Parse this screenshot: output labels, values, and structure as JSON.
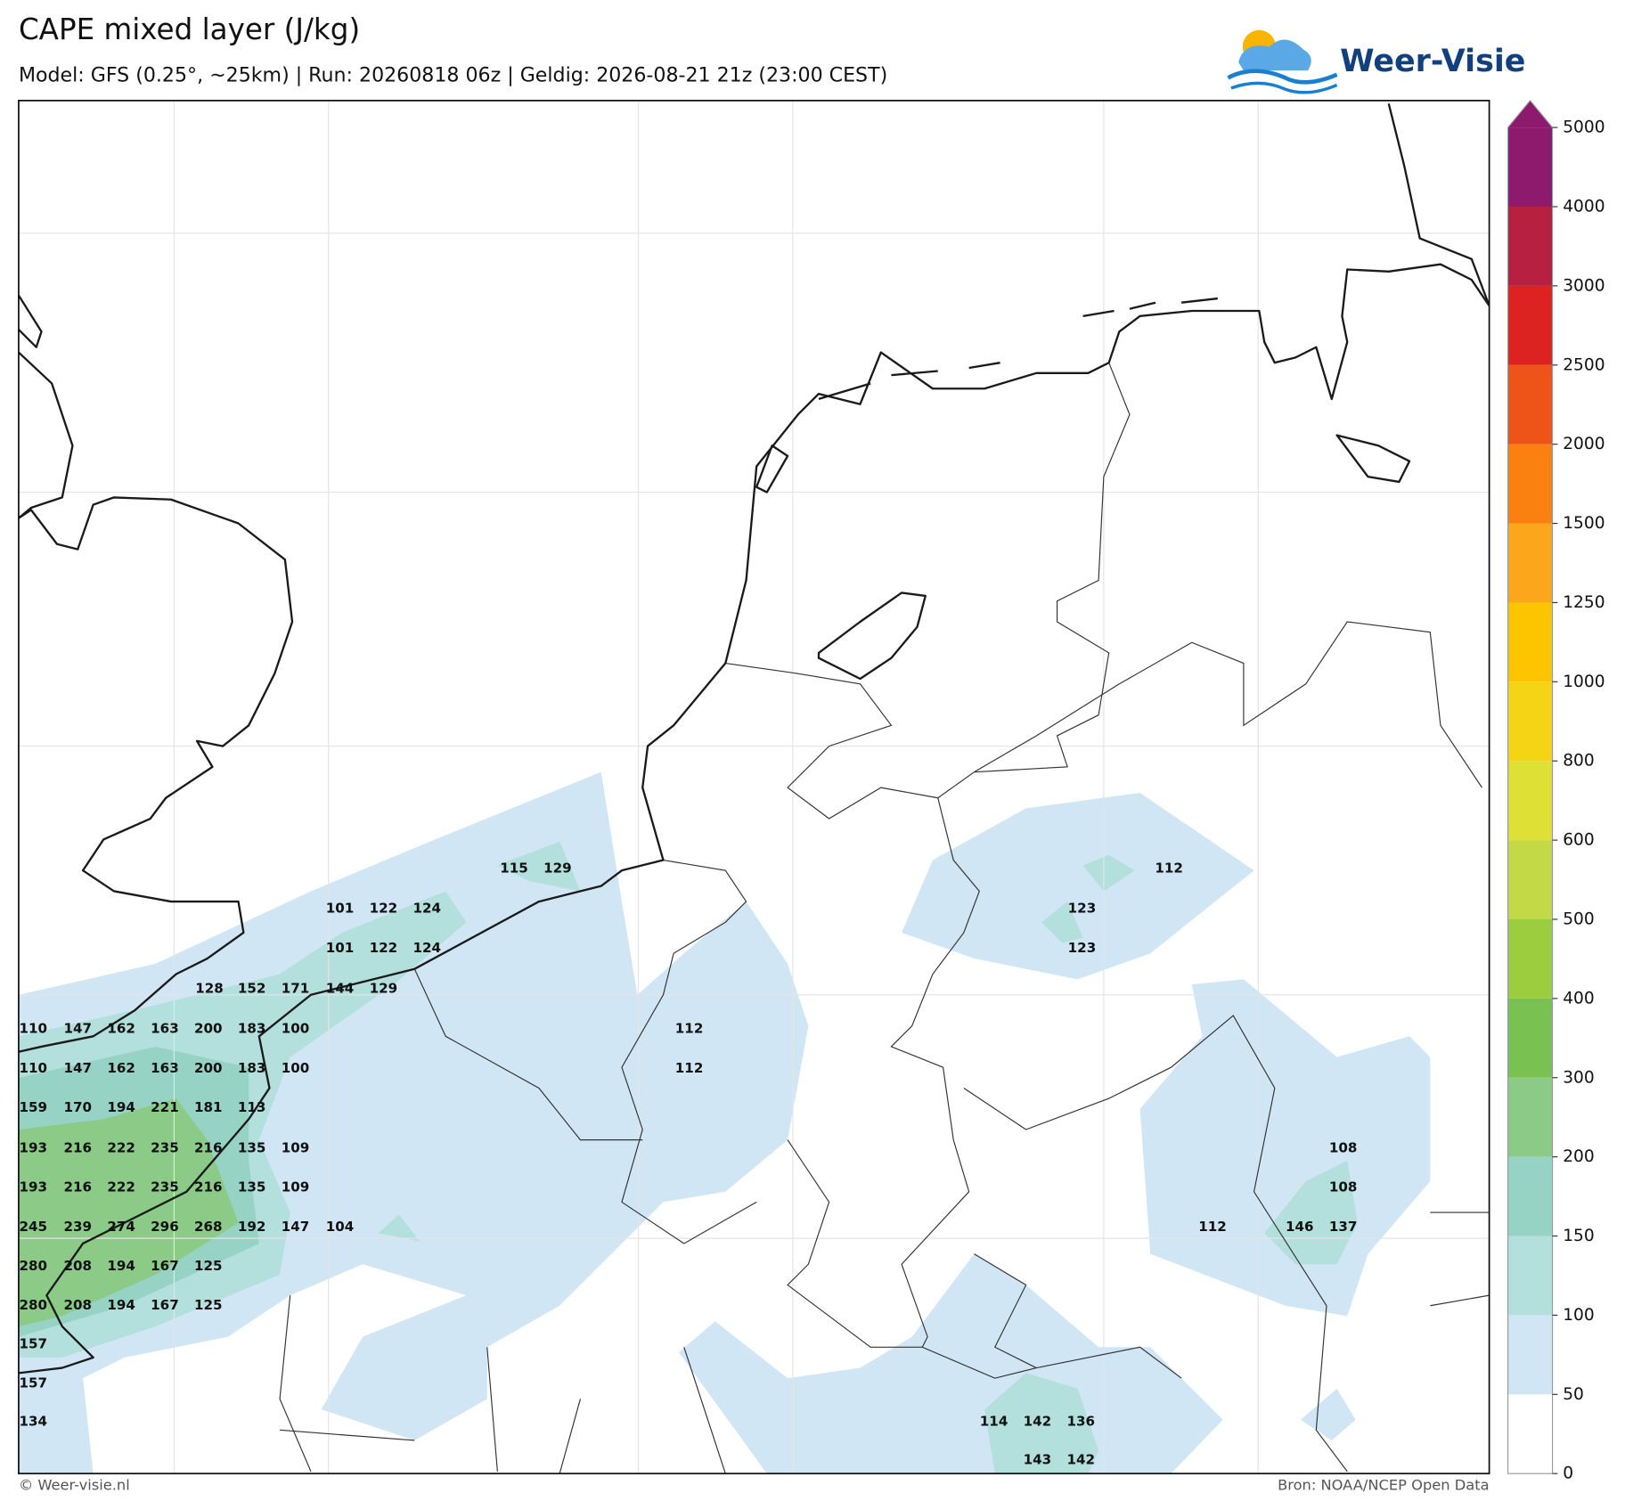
{
  "header": {
    "title": "CAPE mixed layer (J/kg)",
    "subtitle": "Model: GFS (0.25°, ~25km)  |  Run: 20260818 06z  |  Geldig: 2026-08-21 21z (23:00 CEST)",
    "logo": "Weer-Visie"
  },
  "map": {
    "point_labels": [
      115,
      129,
      112,
      101,
      122,
      124,
      123,
      101,
      122,
      124,
      123,
      128,
      152,
      171,
      144,
      129,
      110,
      147,
      162,
      163,
      200,
      183,
      100,
      112,
      110,
      147,
      162,
      163,
      200,
      183,
      100,
      112,
      159,
      170,
      194,
      221,
      181,
      113,
      193,
      216,
      222,
      235,
      216,
      135,
      109,
      108,
      193,
      216,
      222,
      235,
      216,
      135,
      109,
      108,
      245,
      239,
      274,
      296,
      268,
      192,
      147,
      104,
      112,
      146,
      137,
      280,
      208,
      194,
      167,
      125,
      280,
      208,
      194,
      167,
      125,
      157,
      157,
      134,
      114,
      142,
      136,
      143,
      142
    ]
  },
  "colorbar": {
    "levels": [
      0,
      50,
      100,
      150,
      200,
      300,
      400,
      500,
      600,
      800,
      1000,
      1250,
      1500,
      2000,
      2500,
      3000,
      4000,
      5000
    ],
    "colors": [
      "#ffffff",
      "#d0e6f5",
      "#b3dfdc",
      "#96d3c5",
      "#8bcb87",
      "#79c150",
      "#9ccd3f",
      "#c3d946",
      "#dfe035",
      "#f3d516",
      "#fcc500",
      "#fca61c",
      "#fa8010",
      "#ee5318",
      "#dd2222",
      "#b72040",
      "#8e1a6e"
    ],
    "extend_color": "#8e1a6e"
  },
  "footer": {
    "credit": "© Weer-visie.nl",
    "source": "Bron: NOAA/NCEP Open Data"
  }
}
